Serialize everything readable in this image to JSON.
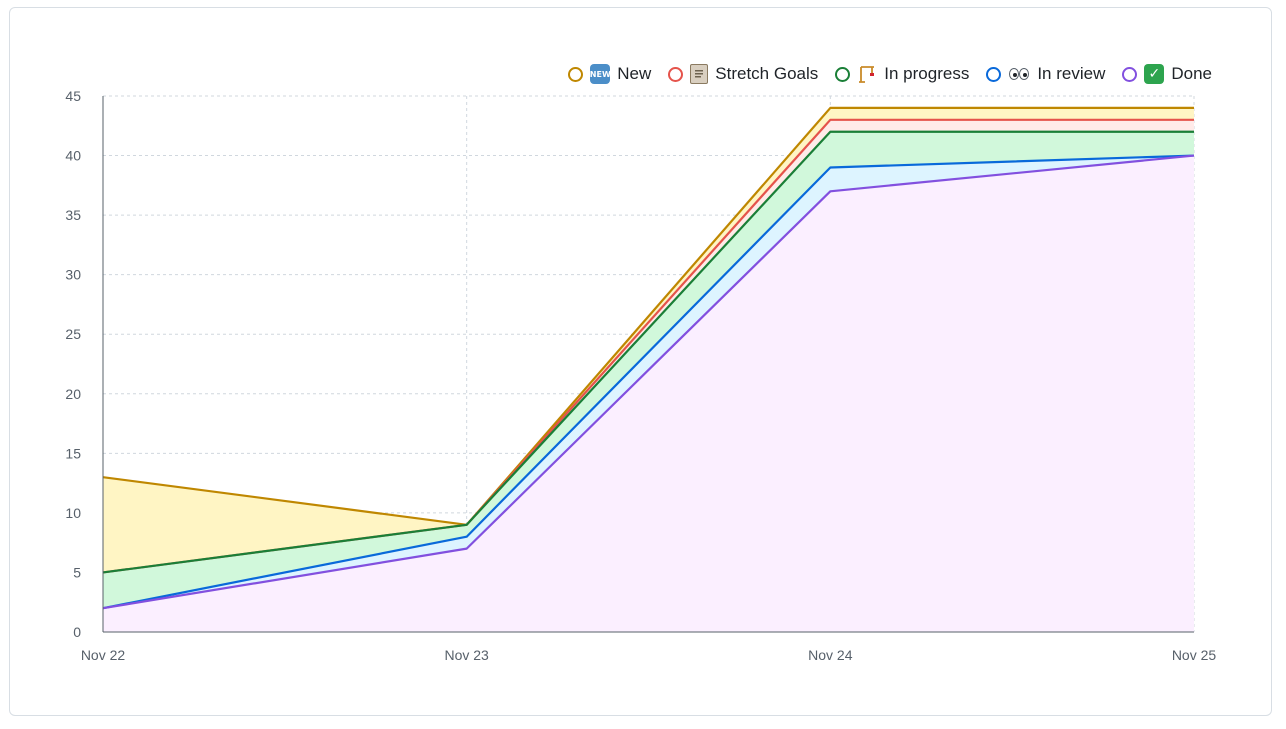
{
  "legend": [
    {
      "label": "New",
      "icon": "new-badge-icon",
      "color": "#bf8700"
    },
    {
      "label": "Stretch Goals",
      "icon": "clipboard-icon",
      "color": "#e5534b"
    },
    {
      "label": "In progress",
      "icon": "crane-icon",
      "color": "#1a7f37"
    },
    {
      "label": "In review",
      "icon": "eyes-icon",
      "color": "#0969da"
    },
    {
      "label": "Done",
      "icon": "check-mark-icon",
      "color": "#8250df"
    }
  ],
  "legend_text": {
    "new": "New",
    "stretch": "Stretch Goals",
    "progress": "In progress",
    "review": "In review",
    "done": "Done",
    "new_badge": "NEW",
    "check": "✓"
  },
  "chart_data": {
    "type": "area",
    "stacked": true,
    "categories": [
      "Nov 22",
      "Nov 23",
      "Nov 24",
      "Nov 25"
    ],
    "series": [
      {
        "name": "Done",
        "color": "#8250df",
        "fill": "#fbefff",
        "values": [
          2,
          7,
          37,
          40
        ]
      },
      {
        "name": "In review",
        "color": "#0969da",
        "fill": "#ddf4ff",
        "values": [
          0,
          1,
          2,
          0
        ]
      },
      {
        "name": "In progress",
        "color": "#1a7f37",
        "fill": "#d1f8db",
        "values": [
          3,
          1,
          3,
          2
        ]
      },
      {
        "name": "Stretch Goals",
        "color": "#e5534b",
        "fill": "#ffebe9",
        "values": [
          0,
          0,
          1,
          1
        ]
      },
      {
        "name": "New",
        "color": "#bf8700",
        "fill": "#fff5c4",
        "values": [
          8,
          0,
          1,
          1
        ]
      }
    ],
    "ylim": [
      0,
      45
    ],
    "yticks": [
      0,
      5,
      10,
      15,
      20,
      25,
      30,
      35,
      40,
      45
    ],
    "grid": true,
    "legend_position": "top-right",
    "xlabel": "",
    "ylabel": ""
  }
}
